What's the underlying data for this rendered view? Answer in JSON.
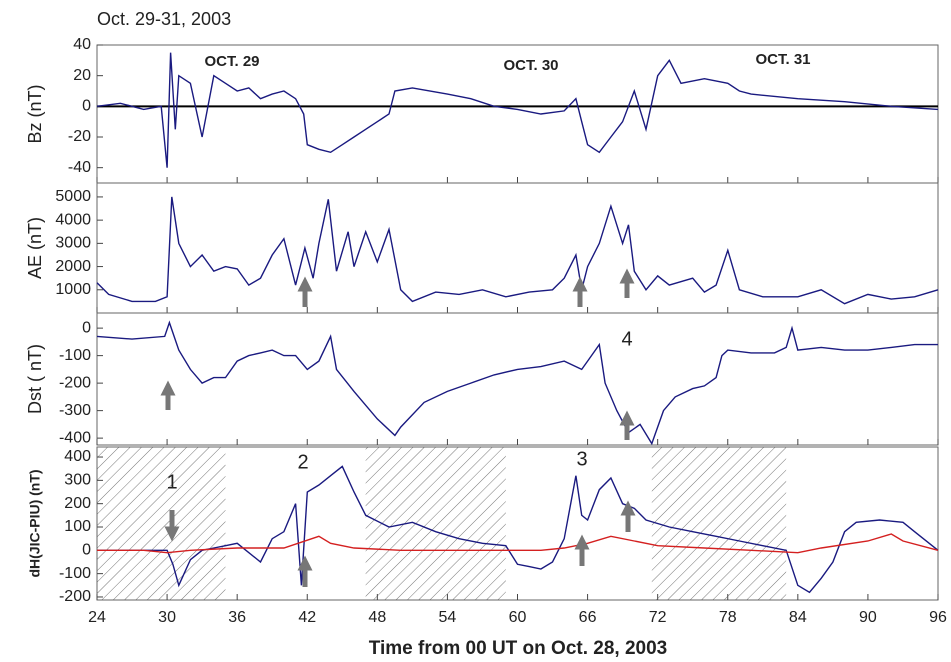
{
  "chart_data": [
    {
      "type": "line",
      "title": "Oct. 29-31, 2003",
      "y_label": "Bz (nT)",
      "ylim": [
        -50,
        40
      ],
      "yticks": [
        -40,
        -20,
        0,
        20,
        40
      ],
      "zero_line": true,
      "annotations": [
        "OCT. 29",
        "OCT. 30",
        "OCT. 31"
      ],
      "series": [
        {
          "color": "#1a1a80",
          "x": [
            24,
            26,
            28,
            29.5,
            30,
            30.3,
            30.7,
            31,
            32,
            33,
            34,
            35,
            36,
            37,
            38,
            39,
            40,
            41,
            41.7,
            42,
            43,
            44,
            45,
            46,
            47,
            48,
            49,
            49.5,
            51,
            54,
            56,
            58,
            60,
            62,
            64,
            65,
            65.5,
            66,
            67,
            68,
            69,
            70,
            71,
            72,
            73,
            74,
            76,
            78,
            79,
            80,
            84,
            88,
            92,
            96
          ],
          "values": [
            0,
            2,
            -2,
            0,
            -40,
            35,
            -15,
            20,
            15,
            -20,
            20,
            15,
            10,
            12,
            5,
            8,
            10,
            5,
            -5,
            -25,
            -28,
            -30,
            -25,
            -20,
            -15,
            -10,
            -5,
            10,
            12,
            8,
            5,
            0,
            -2,
            -5,
            -3,
            5,
            -10,
            -25,
            -30,
            -20,
            -10,
            10,
            -15,
            20,
            30,
            15,
            18,
            15,
            10,
            8,
            5,
            3,
            0,
            -2
          ]
        }
      ]
    },
    {
      "type": "line",
      "y_label": "AE (nT)",
      "ylim": [
        0,
        5600
      ],
      "yticks": [
        1000,
        2000,
        3000,
        4000,
        5000
      ],
      "series": [
        {
          "color": "#1a1a80",
          "x": [
            24,
            25,
            27,
            29,
            30,
            30.4,
            31,
            32,
            33,
            34,
            35,
            36,
            37,
            38,
            39,
            40,
            41,
            41.8,
            42.5,
            43,
            43.8,
            44.5,
            45.5,
            46,
            47,
            48,
            49,
            50,
            51,
            53,
            55,
            57,
            59,
            61,
            63,
            64,
            65,
            65.5,
            66,
            67,
            68,
            69,
            69.5,
            70,
            71,
            72,
            73,
            75,
            76,
            77,
            78,
            79,
            81,
            84,
            86,
            88,
            90,
            92,
            94,
            96
          ],
          "values": [
            1300,
            800,
            500,
            500,
            700,
            5000,
            3000,
            2000,
            2500,
            1800,
            2000,
            1900,
            1200,
            1500,
            2500,
            3200,
            1200,
            2800,
            1500,
            3000,
            4900,
            1800,
            3500,
            2000,
            3500,
            2200,
            3600,
            1000,
            500,
            900,
            800,
            1000,
            700,
            900,
            1000,
            1500,
            2500,
            1000,
            2000,
            3000,
            4600,
            3000,
            3800,
            1800,
            1000,
            1600,
            1200,
            1500,
            900,
            1200,
            2700,
            1000,
            700,
            700,
            1000,
            400,
            800,
            600,
            700,
            1000
          ]
        }
      ]
    },
    {
      "type": "line",
      "y_label": "Dst ( nT)",
      "ylim": [
        -425,
        55
      ],
      "yticks": [
        -400,
        -300,
        -200,
        -100,
        0
      ],
      "annotations": [
        "4"
      ],
      "series": [
        {
          "color": "#1a1a80",
          "x": [
            24,
            27,
            29.8,
            30.2,
            31,
            32,
            33,
            34,
            35,
            36,
            37,
            38,
            39,
            40,
            41,
            42,
            43,
            44,
            44.5,
            46,
            48,
            49.5,
            50,
            52,
            54,
            56,
            58,
            60,
            62,
            64,
            65.5,
            66,
            67,
            67.5,
            68.5,
            69.5,
            70.5,
            71.5,
            72.5,
            73.5,
            75,
            76,
            77,
            77.5,
            78,
            80,
            82,
            83,
            83.5,
            84,
            86,
            88,
            90,
            92,
            94,
            96
          ],
          "values": [
            -30,
            -40,
            -30,
            20,
            -80,
            -150,
            -200,
            -180,
            -180,
            -120,
            -100,
            -90,
            -80,
            -100,
            -100,
            -150,
            -120,
            -30,
            -150,
            -230,
            -330,
            -390,
            -360,
            -270,
            -230,
            -200,
            -170,
            -150,
            -140,
            -120,
            -150,
            -120,
            -60,
            -200,
            -300,
            -380,
            -350,
            -420,
            -300,
            -250,
            -220,
            -210,
            -180,
            -100,
            -80,
            -90,
            -90,
            -70,
            0,
            -80,
            -70,
            -80,
            -80,
            -70,
            -60,
            -60
          ]
        }
      ]
    },
    {
      "type": "line",
      "y_label": "dH(JIC-PIU) (nT)",
      "x_label": "Time from 00 UT on Oct. 28, 2003",
      "xlim": [
        24,
        96
      ],
      "xticks": [
        24,
        30,
        36,
        42,
        48,
        54,
        60,
        66,
        72,
        78,
        84,
        90,
        96
      ],
      "ylim": [
        -213,
        443
      ],
      "yticks": [
        -200,
        -100,
        0,
        100,
        200,
        300,
        400
      ],
      "hatched_intervals": [
        [
          24,
          35
        ],
        [
          47,
          59
        ],
        [
          71.5,
          83
        ]
      ],
      "annotations": [
        "1",
        "2",
        "3"
      ],
      "series": [
        {
          "color": "#1a1a80",
          "x": [
            24,
            28,
            30,
            30.5,
            31,
            32,
            33,
            34,
            35,
            36,
            38,
            39,
            40,
            41,
            41.5,
            42,
            43,
            44,
            45,
            46,
            47,
            49,
            51,
            53,
            55,
            57,
            59,
            60,
            61,
            62,
            63,
            64,
            65,
            65.5,
            66,
            67,
            68,
            69,
            70,
            71,
            73,
            75,
            77,
            79,
            81,
            83,
            84,
            85,
            86,
            87,
            88,
            89,
            91,
            93,
            94,
            96
          ],
          "values": [
            0,
            0,
            0,
            -60,
            -150,
            -40,
            0,
            10,
            20,
            30,
            -50,
            50,
            80,
            200,
            -150,
            250,
            280,
            320,
            360,
            250,
            150,
            100,
            120,
            80,
            50,
            30,
            20,
            -60,
            -70,
            -80,
            -50,
            50,
            320,
            150,
            130,
            260,
            310,
            200,
            180,
            130,
            100,
            80,
            60,
            40,
            20,
            0,
            -150,
            -180,
            -120,
            -50,
            80,
            120,
            130,
            120,
            80,
            0
          ]
        },
        {
          "color": "#d42020",
          "x": [
            24,
            28,
            30,
            32,
            36,
            40,
            43,
            44,
            46,
            50,
            58,
            62,
            64,
            66,
            68,
            70,
            72,
            76,
            80,
            84,
            86,
            90,
            92,
            93,
            96
          ],
          "values": [
            0,
            0,
            -10,
            0,
            10,
            10,
            60,
            30,
            10,
            0,
            0,
            0,
            10,
            30,
            60,
            40,
            20,
            10,
            0,
            -10,
            10,
            40,
            70,
            40,
            0
          ]
        }
      ]
    }
  ]
}
